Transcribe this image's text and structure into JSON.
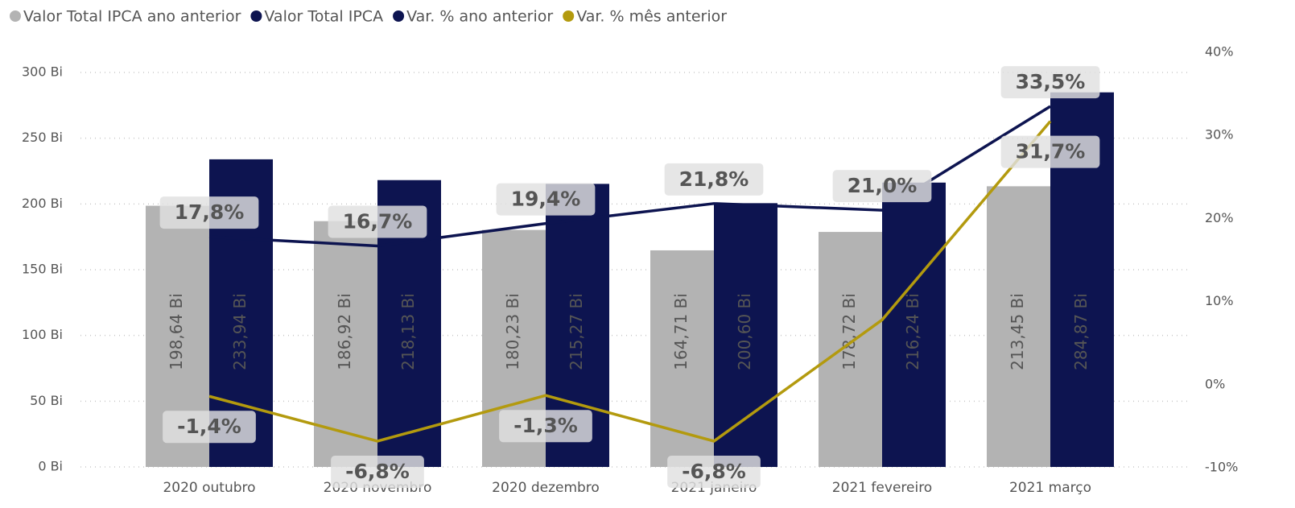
{
  "chart_data": {
    "type": "bar",
    "categories": [
      "2020 outubro",
      "2020 novembro",
      "2020 dezembro",
      "2021 janeiro",
      "2021 fevereiro",
      "2021 março"
    ],
    "series": [
      {
        "name": "Valor Total IPCA ano anterior",
        "type": "bar",
        "color": "#b3b3b3",
        "label_color": "#444444",
        "values": [
          198.64,
          186.92,
          180.23,
          164.71,
          178.72,
          213.45
        ],
        "value_labels": [
          "198,64 Bi",
          "186,92 Bi",
          "180,23 Bi",
          "164,71 Bi",
          "178,72 Bi",
          "213,45 Bi"
        ]
      },
      {
        "name": "Valor Total IPCA",
        "type": "bar",
        "color": "#0d1450",
        "label_color": "#ffffff",
        "values": [
          233.94,
          218.13,
          215.27,
          200.6,
          216.24,
          284.87
        ],
        "value_labels": [
          "233,94 Bi",
          "218,13 Bi",
          "215,27 Bi",
          "200,60 Bi",
          "216,24 Bi",
          "284,87 Bi"
        ]
      },
      {
        "name": "Var. % ano anterior",
        "type": "line",
        "axis": "y2",
        "color": "#0d1450",
        "label_side": "above",
        "values": [
          17.8,
          16.7,
          19.4,
          21.8,
          21.0,
          33.5
        ],
        "value_labels": [
          "17,8%",
          "16,7%",
          "19,4%",
          "21,8%",
          "21,0%",
          "33,5%"
        ]
      },
      {
        "name": "Var. % mês anterior",
        "type": "line",
        "axis": "y2",
        "color": "#b39a0e",
        "label_side": "below",
        "values": [
          -1.4,
          -6.8,
          -1.3,
          -6.8,
          7.8,
          31.7
        ],
        "value_labels": [
          "-1,4%",
          "-6,8%",
          "-1,3%",
          "-6,8%",
          null,
          "31,7%"
        ]
      }
    ],
    "ylim": [
      0,
      300
    ],
    "yticks": [
      {
        "value": 0,
        "label": "0 Bi"
      },
      {
        "value": 50,
        "label": "50 Bi"
      },
      {
        "value": 100,
        "label": "100 Bi"
      },
      {
        "value": 150,
        "label": "150 Bi"
      },
      {
        "value": 200,
        "label": "200 Bi"
      },
      {
        "value": 250,
        "label": "250 Bi"
      },
      {
        "value": 300,
        "label": "300 Bi"
      }
    ],
    "y2lim": [
      -10,
      40
    ],
    "y2ticks": [
      {
        "value": -10,
        "label": "-10%"
      },
      {
        "value": 0,
        "label": "0%"
      },
      {
        "value": 10,
        "label": "10%"
      },
      {
        "value": 20,
        "label": "20%"
      },
      {
        "value": 30,
        "label": "30%"
      },
      {
        "value": 40,
        "label": "40%"
      }
    ],
    "grid": true,
    "legend": "top-left"
  }
}
